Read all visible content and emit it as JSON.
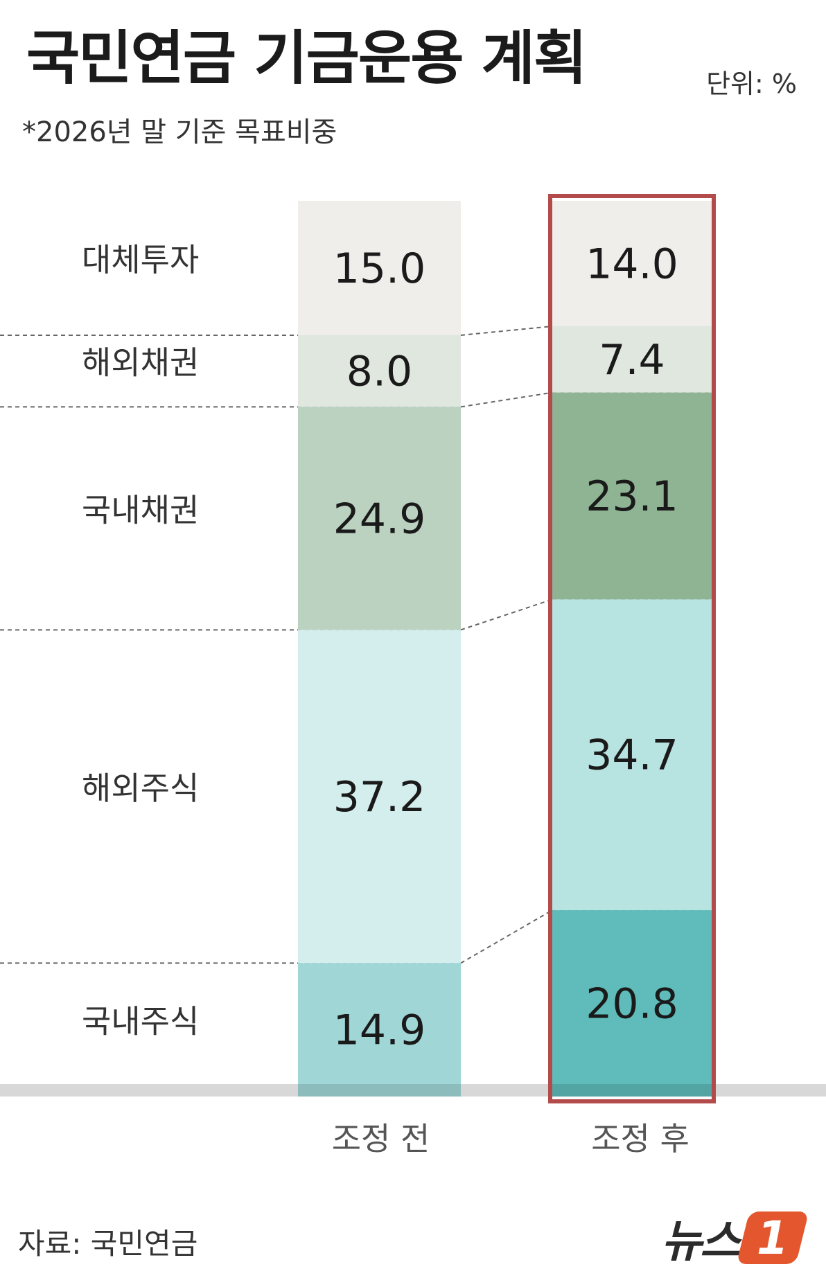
{
  "title": "국민연금 기금운용 계획",
  "unit": "단위: %",
  "subtitle": "*2026년 말 기준 목표비중",
  "source": "자료: 국민연금",
  "logo": {
    "text": "뉴스",
    "badge": "1"
  },
  "colors": {
    "alternative": "#efeeeb",
    "foreign_bonds": "#dfe7df",
    "domestic_bonds_before": "#bad2bf",
    "domestic_bonds_after": "#8eb494",
    "foreign_stocks_before": "#d4eeee",
    "foreign_stocks_after": "#b7e3e1",
    "domestic_stocks_before": "#a0d6d6",
    "domestic_stocks_after": "#5fbcba",
    "highlight_border": "#b34b4b",
    "baseline": "#d8d8d8"
  },
  "chart_data": {
    "type": "bar",
    "stacked": true,
    "categories": [
      "조정 전",
      "조정 후"
    ],
    "series": [
      {
        "name": "대체투자",
        "values": [
          15.0,
          14.0
        ]
      },
      {
        "name": "해외채권",
        "values": [
          8.0,
          7.4
        ]
      },
      {
        "name": "국내채권",
        "values": [
          24.9,
          23.1
        ]
      },
      {
        "name": "해외주식",
        "values": [
          37.2,
          34.7
        ]
      },
      {
        "name": "국내주식",
        "values": [
          14.9,
          20.8
        ]
      }
    ],
    "highlight_category": "조정 후",
    "legend": "left",
    "grid": false
  }
}
